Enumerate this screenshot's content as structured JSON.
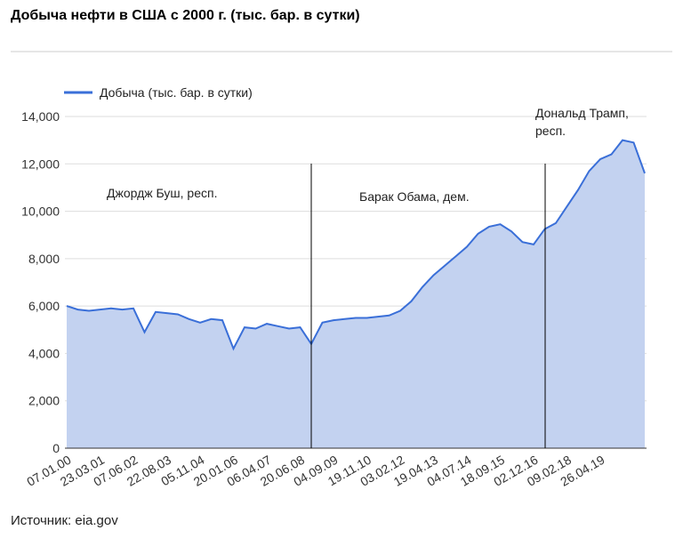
{
  "chart_data": {
    "type": "area",
    "title": "Добыча нефти в США с 2000 г. (тыс. бар. в сутки)",
    "categories": [
      "07.01.00",
      null,
      null,
      "23.03.01",
      null,
      null,
      "07.06.02",
      null,
      null,
      "22.08.03",
      null,
      null,
      "05.11.04",
      null,
      null,
      "20.01.06",
      null,
      null,
      "06.04.07",
      null,
      null,
      "20.06.08",
      null,
      null,
      "04.09.09",
      null,
      null,
      "19.11.10",
      null,
      null,
      "03.02.12",
      null,
      null,
      "19.04.13",
      null,
      null,
      "04.07.14",
      null,
      null,
      "18.09.15",
      null,
      null,
      "02.12.16",
      null,
      null,
      "09.02.18",
      null,
      null,
      "26.04.19",
      null,
      null,
      null,
      null
    ],
    "series": [
      {
        "name": "Добыча (тыс. бар. в сутки)",
        "color": "#3a6fd8",
        "values": [
          6000,
          5850,
          5800,
          5850,
          5900,
          5850,
          5900,
          4900,
          5750,
          5700,
          5650,
          5450,
          5300,
          5450,
          5400,
          4200,
          5100,
          5050,
          5250,
          5150,
          5050,
          5100,
          4400,
          5300,
          5400,
          5450,
          5500,
          5500,
          5550,
          5600,
          5800,
          6200,
          6800,
          7300,
          7700,
          8100,
          8500,
          9050,
          9350,
          9450,
          9150,
          8700,
          8600,
          9250,
          9500,
          10200,
          10900,
          11700,
          12200,
          12400,
          13000,
          12900,
          11600
        ]
      }
    ],
    "ylim": [
      0,
      14000
    ],
    "yticks": [
      0,
      {
        "value": 2000,
        "label": "2,000"
      },
      {
        "value": 4000,
        "label": "4,000"
      },
      {
        "value": 6000,
        "label": "6,000"
      },
      {
        "value": 8000,
        "label": "8,000"
      },
      {
        "value": 10000,
        "label": "10,000"
      },
      {
        "value": 12000,
        "label": "12,000"
      },
      {
        "value": 14000,
        "label": "14,000"
      }
    ],
    "grid": true,
    "area_color": "#c3d2f0",
    "annotations": [
      "Джордж Буш, респ.",
      "Барак Обама, дем.",
      "Дональд Трамп,",
      "респ."
    ],
    "source": "Источник: eia.gov"
  }
}
